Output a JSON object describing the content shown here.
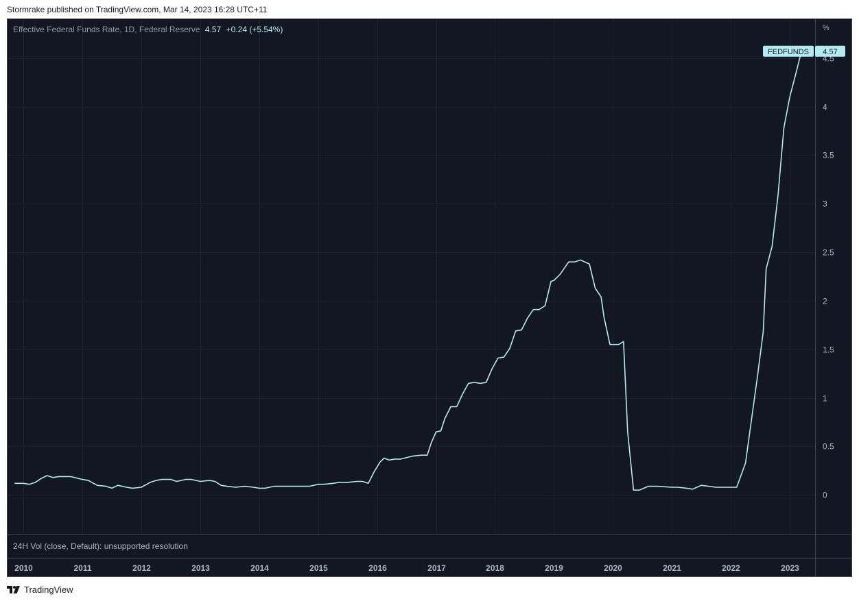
{
  "header": {
    "published": "Stormrake published on TradingView.com, Mar 14, 2023 16:28 UTC+11"
  },
  "legend": {
    "title": "Effective Federal Funds Rate, 1D, Federal Reserve",
    "value": "4.57",
    "change": "+0.24 (+5.54%)"
  },
  "volume_pane": {
    "label": "24H Vol (close, Default): unsupported resolution"
  },
  "price_scale": {
    "unit": "%"
  },
  "price_tag": {
    "symbol": "FEDFUNDS",
    "value": "4.57"
  },
  "footer": {
    "brand": "TradingView"
  },
  "colors": {
    "background": "#131722",
    "line": "#b2ebf2",
    "grid": "#1e222d",
    "text": "#b2b5be"
  },
  "chart_data": {
    "type": "line",
    "series": [
      {
        "name": "FEDFUNDS",
        "x": [
          2009.85,
          2010.0,
          2010.1,
          2010.2,
          2010.3,
          2010.4,
          2010.5,
          2010.6,
          2010.8,
          2011.0,
          2011.1,
          2011.25,
          2011.4,
          2011.5,
          2011.6,
          2011.75,
          2011.85,
          2012.0,
          2012.15,
          2012.25,
          2012.35,
          2012.5,
          2012.6,
          2012.75,
          2012.85,
          2013.0,
          2013.15,
          2013.25,
          2013.35,
          2013.45,
          2013.6,
          2013.75,
          2013.9,
          2014.0,
          2014.1,
          2014.25,
          2014.35,
          2014.5,
          2014.65,
          2014.75,
          2014.85,
          2015.0,
          2015.1,
          2015.25,
          2015.35,
          2015.5,
          2015.65,
          2015.75,
          2015.85,
          2015.95,
          2016.05,
          2016.12,
          2016.2,
          2016.3,
          2016.4,
          2016.6,
          2016.75,
          2016.85,
          2016.92,
          2017.0,
          2017.08,
          2017.15,
          2017.25,
          2017.35,
          2017.45,
          2017.55,
          2017.65,
          2017.75,
          2017.85,
          2017.95,
          2018.05,
          2018.15,
          2018.25,
          2018.35,
          2018.45,
          2018.55,
          2018.65,
          2018.75,
          2018.85,
          2018.95,
          2019.0,
          2019.1,
          2019.25,
          2019.35,
          2019.45,
          2019.52,
          2019.6,
          2019.7,
          2019.8,
          2019.85,
          2019.95,
          2020.1,
          2020.18,
          2020.25,
          2020.35,
          2020.45,
          2020.6,
          2020.75,
          2021.0,
          2021.1,
          2021.25,
          2021.35,
          2021.5,
          2021.75,
          2022.0,
          2022.1,
          2022.25,
          2022.35,
          2022.45,
          2022.55,
          2022.6,
          2022.7,
          2022.8,
          2022.9,
          2023.0,
          2023.1,
          2023.2
        ],
        "values": [
          0.12,
          0.12,
          0.11,
          0.13,
          0.17,
          0.2,
          0.18,
          0.19,
          0.19,
          0.16,
          0.15,
          0.1,
          0.09,
          0.07,
          0.1,
          0.08,
          0.07,
          0.08,
          0.13,
          0.15,
          0.16,
          0.16,
          0.14,
          0.16,
          0.16,
          0.14,
          0.15,
          0.14,
          0.1,
          0.09,
          0.08,
          0.09,
          0.08,
          0.07,
          0.07,
          0.09,
          0.09,
          0.09,
          0.09,
          0.09,
          0.09,
          0.11,
          0.11,
          0.12,
          0.13,
          0.13,
          0.14,
          0.14,
          0.12,
          0.24,
          0.34,
          0.38,
          0.36,
          0.37,
          0.37,
          0.4,
          0.41,
          0.41,
          0.54,
          0.65,
          0.66,
          0.79,
          0.91,
          0.91,
          1.04,
          1.15,
          1.16,
          1.15,
          1.16,
          1.3,
          1.41,
          1.42,
          1.51,
          1.69,
          1.7,
          1.82,
          1.91,
          1.91,
          1.95,
          2.2,
          2.21,
          2.27,
          2.4,
          2.4,
          2.42,
          2.4,
          2.38,
          2.13,
          2.04,
          1.83,
          1.55,
          1.55,
          1.58,
          0.65,
          0.05,
          0.05,
          0.09,
          0.09,
          0.08,
          0.08,
          0.07,
          0.06,
          0.1,
          0.08,
          0.08,
          0.08,
          0.33,
          0.77,
          1.21,
          1.68,
          2.33,
          2.56,
          3.08,
          3.78,
          4.1,
          4.33,
          4.57
        ]
      }
    ],
    "xlim": [
      2009.73,
      2023.43
    ],
    "ylim": [
      -0.4,
      4.9
    ],
    "x_ticks": [
      "2010",
      "2011",
      "2012",
      "2013",
      "2014",
      "2015",
      "2016",
      "2017",
      "2018",
      "2019",
      "2020",
      "2021",
      "2022",
      "2023"
    ],
    "y_ticks": [
      "0",
      "0.5",
      "1",
      "1.5",
      "2",
      "2.5",
      "3",
      "3.5",
      "4",
      "4.5"
    ],
    "grid": true,
    "xlabel": "",
    "ylabel": "%"
  }
}
